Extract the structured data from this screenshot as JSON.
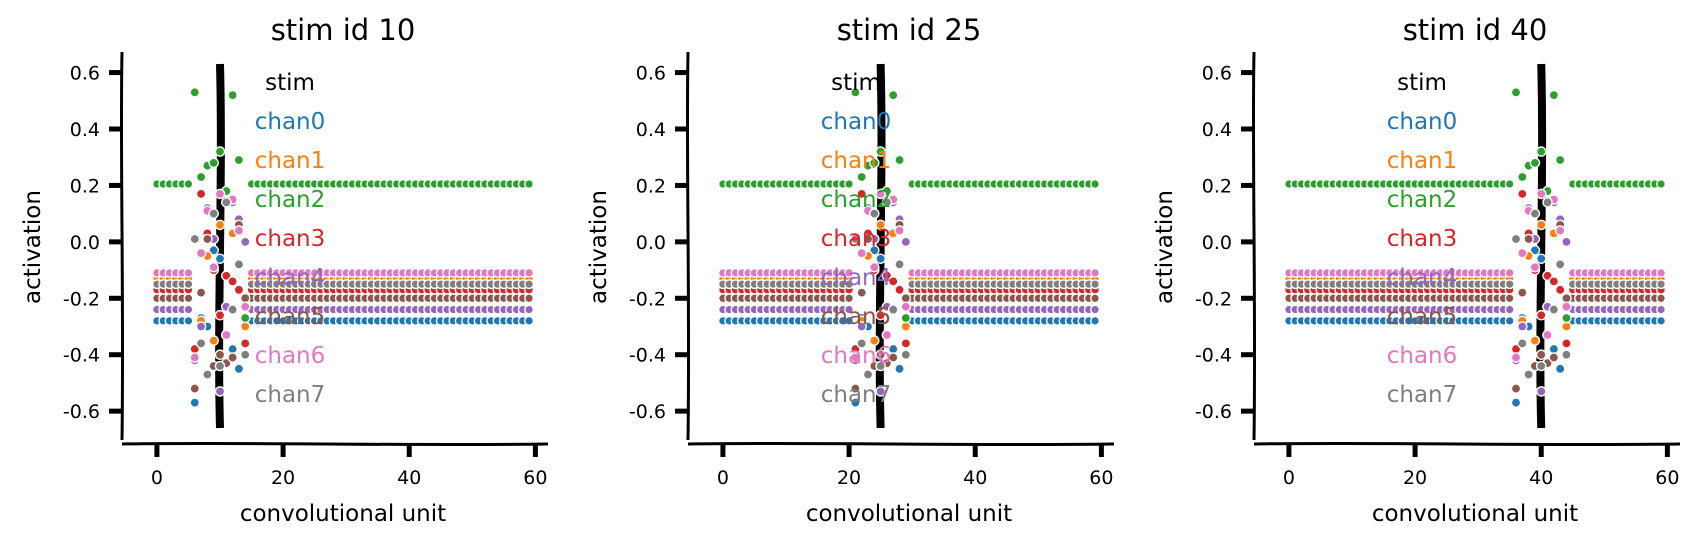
{
  "chart_data": {
    "type": "scatter",
    "colors": {
      "chan0": "#1f77b4",
      "chan1": "#ff7f0e",
      "chan2": "#2ca02c",
      "chan3": "#d62728",
      "chan4": "#9467bd",
      "chan5": "#8c564b",
      "chan6": "#e377c2",
      "chan7": "#7f7f7f"
    },
    "panels": [
      {
        "title": "stim id 10",
        "stim": 10
      },
      {
        "title": "stim id 25",
        "stim": 25
      },
      {
        "title": "stim id 40",
        "stim": 40
      }
    ],
    "xlabel": "convolutional unit",
    "ylabel": "activation",
    "xlim": [
      -3,
      62
    ],
    "ylim": [
      -0.72,
      0.68
    ],
    "xticks": [
      0,
      20,
      40,
      60
    ],
    "yticks": [
      0.6,
      0.4,
      0.2,
      0.0,
      -0.2,
      -0.4,
      -0.6
    ],
    "ytick_labels": [
      "0.6",
      "0.4",
      "0.2",
      "0.0",
      "-0.2",
      "-0.4",
      "-0.6"
    ],
    "xtick_labels": [
      "0",
      "20",
      "40",
      "60"
    ],
    "n_units": 60,
    "baselines": {
      "chan0": -0.28,
      "chan1": -0.13,
      "chan2": 0.205,
      "chan3": -0.17,
      "chan4": -0.24,
      "chan5": -0.2,
      "chan6": -0.11,
      "chan7": -0.15
    },
    "response_offsets": [
      -4,
      -3,
      -2,
      -1,
      0,
      1,
      2,
      3,
      4
    ],
    "responses": {
      "chan0": [
        -0.57,
        -0.27,
        -0.3,
        -0.03,
        -0.06,
        -0.23,
        -0.38,
        -0.45,
        -0.4
      ],
      "chan1": [
        -0.38,
        -0.28,
        -0.05,
        -0.35,
        0.06,
        -0.33,
        0.03,
        -0.08,
        -0.3
      ],
      "chan2": [
        0.53,
        0.23,
        0.27,
        0.28,
        0.32,
        0.18,
        0.52,
        0.29,
        -0.27
      ],
      "chan3": [
        -0.38,
        0.17,
        0.03,
        -0.1,
        -0.26,
        -0.12,
        -0.14,
        -0.17,
        -0.36
      ],
      "chan4": [
        -0.42,
        -0.3,
        0.12,
        0.01,
        -0.53,
        -0.23,
        0.14,
        0.08,
        0.0
      ],
      "chan5": [
        -0.52,
        -0.18,
        0.01,
        -0.44,
        -0.4,
        -0.43,
        -0.41,
        0.06,
        -0.2
      ],
      "chan6": [
        -0.41,
        -0.04,
        0.11,
        -0.09,
        0.17,
        -0.33,
        0.15,
        0.04,
        -0.23
      ],
      "chan7": [
        0.01,
        -0.36,
        -0.47,
        0.1,
        -0.44,
        0.14,
        -0.24,
        -0.08,
        -0.4
      ]
    },
    "legend_title": "stim",
    "legend_labels": [
      "chan0",
      "chan1",
      "chan2",
      "chan3",
      "chan4",
      "chan5",
      "chan6",
      "chan7"
    ],
    "legend_position": "right",
    "grid": false
  }
}
